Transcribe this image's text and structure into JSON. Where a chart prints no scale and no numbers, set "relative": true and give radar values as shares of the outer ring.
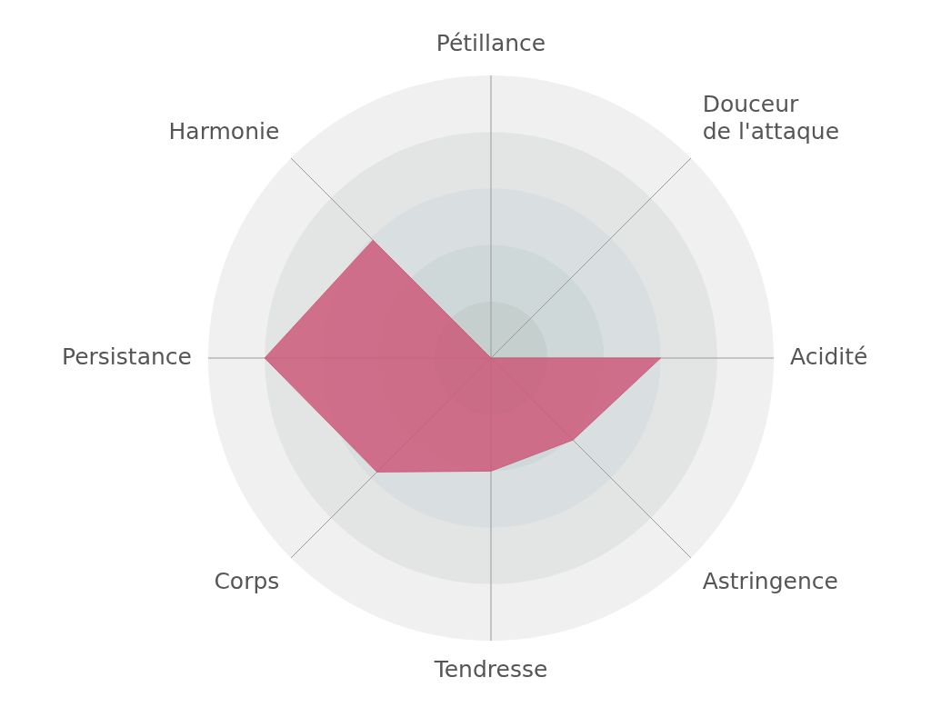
{
  "chart_data": {
    "type": "radar",
    "relative": true,
    "grid": true,
    "marker": "none",
    "categories": [
      "Pétillance",
      "Douceur de l'attaque",
      "Acidité",
      "Astringence",
      "Tendresse",
      "Corps",
      "Persistance",
      "Harmonie"
    ],
    "series": [
      {
        "color": "#cc5a7a",
        "values": [
          0,
          0,
          0.6,
          0.41,
          0.4,
          0.57,
          0.8,
          0.59
        ]
      }
    ]
  }
}
